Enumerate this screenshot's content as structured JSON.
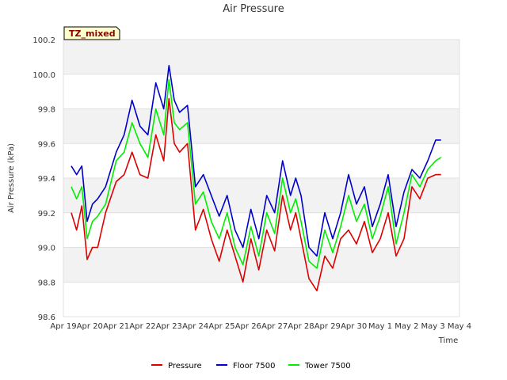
{
  "chart_data": {
    "type": "line",
    "title": "Air Pressure",
    "xlabel": "Time",
    "ylabel": "Air Pressure (kPa)",
    "badge": "TZ_mixed",
    "ylim": [
      98.6,
      100.2
    ],
    "xlim": [
      0,
      15
    ],
    "yticks": [
      "98.6",
      "98.8",
      "99.0",
      "99.2",
      "99.4",
      "99.6",
      "99.8",
      "100.0",
      "100.2"
    ],
    "xtick_labels": [
      "Apr 19",
      "Apr 20",
      "Apr 21",
      "Apr 22",
      "Apr 23",
      "Apr 24",
      "Apr 25",
      "Apr 26",
      "Apr 27",
      "Apr 28",
      "Apr 29",
      "Apr 30",
      "May 1",
      "May 2",
      "May 3",
      "May 4"
    ],
    "x": [
      0.3,
      0.5,
      0.7,
      0.9,
      1.1,
      1.3,
      1.6,
      2.0,
      2.3,
      2.6,
      2.9,
      3.2,
      3.5,
      3.8,
      4.0,
      4.2,
      4.4,
      4.7,
      5.0,
      5.3,
      5.6,
      5.9,
      6.2,
      6.5,
      6.8,
      7.1,
      7.4,
      7.7,
      8.0,
      8.3,
      8.6,
      8.8,
      9.0,
      9.3,
      9.6,
      9.9,
      10.2,
      10.5,
      10.8,
      11.1,
      11.4,
      11.7,
      12.0,
      12.3,
      12.6,
      12.9,
      13.2,
      13.5,
      13.8,
      14.1,
      14.3
    ],
    "series": [
      {
        "name": "Pressure",
        "color": "#dd0000",
        "values": [
          99.2,
          99.1,
          99.24,
          98.93,
          99.0,
          99.0,
          99.2,
          99.38,
          99.42,
          99.55,
          99.42,
          99.4,
          99.65,
          99.5,
          99.86,
          99.6,
          99.55,
          99.6,
          99.1,
          99.22,
          99.05,
          98.92,
          99.1,
          98.95,
          98.8,
          99.05,
          98.87,
          99.1,
          98.98,
          99.3,
          99.1,
          99.2,
          99.05,
          98.82,
          98.75,
          98.95,
          98.88,
          99.05,
          99.1,
          99.02,
          99.15,
          98.97,
          99.05,
          99.2,
          98.95,
          99.05,
          99.35,
          99.28,
          99.4,
          99.42,
          99.42
        ]
      },
      {
        "name": "Floor 7500",
        "color": "#0000cc",
        "values": [
          99.47,
          99.42,
          99.47,
          99.15,
          99.25,
          99.28,
          99.35,
          99.55,
          99.65,
          99.85,
          99.7,
          99.65,
          99.95,
          99.8,
          100.05,
          99.85,
          99.78,
          99.82,
          99.35,
          99.42,
          99.3,
          99.18,
          99.3,
          99.1,
          99.0,
          99.22,
          99.05,
          99.3,
          99.2,
          99.5,
          99.3,
          99.4,
          99.3,
          99.0,
          98.95,
          99.2,
          99.05,
          99.2,
          99.42,
          99.25,
          99.35,
          99.12,
          99.25,
          99.42,
          99.12,
          99.32,
          99.45,
          99.4,
          99.5,
          99.62,
          99.62
        ]
      },
      {
        "name": "Tower 7500",
        "color": "#00ee00",
        "values": [
          99.35,
          99.28,
          99.35,
          99.05,
          99.15,
          99.18,
          99.25,
          99.5,
          99.55,
          99.72,
          99.6,
          99.52,
          99.8,
          99.65,
          99.97,
          99.72,
          99.68,
          99.72,
          99.25,
          99.32,
          99.15,
          99.05,
          99.2,
          99.0,
          98.9,
          99.12,
          98.95,
          99.2,
          99.08,
          99.4,
          99.2,
          99.28,
          99.15,
          98.92,
          98.88,
          99.1,
          98.97,
          99.12,
          99.3,
          99.15,
          99.25,
          99.05,
          99.18,
          99.35,
          99.02,
          99.2,
          99.42,
          99.35,
          99.45,
          99.5,
          99.52
        ]
      }
    ],
    "legend": [
      "Pressure",
      "Floor 7500",
      "Tower 7500"
    ],
    "grid": true
  }
}
